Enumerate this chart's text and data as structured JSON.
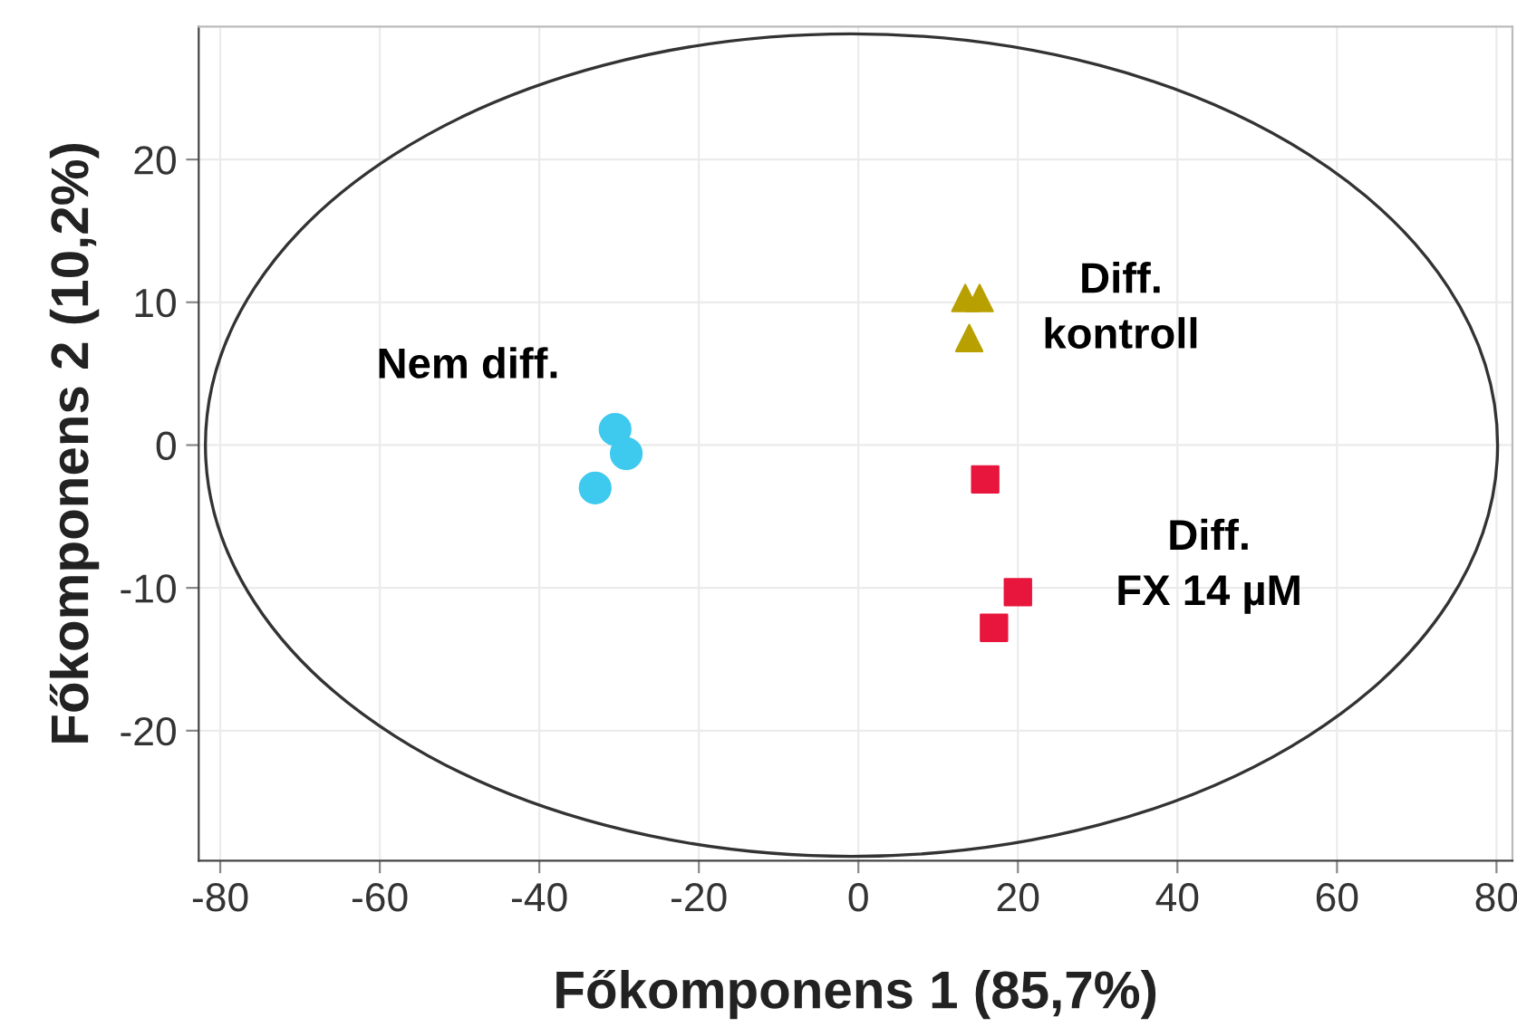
{
  "chart_data": {
    "type": "scatter",
    "xlabel": "Főkomponens 1 (85,7%)",
    "ylabel": "Főkomponens 2 (10,2%)",
    "xlim": [
      -82.7,
      82
    ],
    "ylim": [
      -29.1,
      29.3
    ],
    "xticks": [
      -80,
      -60,
      -40,
      -20,
      0,
      20,
      40,
      60,
      80
    ],
    "yticks": [
      -20,
      -10,
      0,
      10,
      20
    ],
    "grid": true,
    "legend": false,
    "series": [
      {
        "color": "#3ec9ee",
        "marker": "circle",
        "x": [
          -30.5,
          -29.1,
          -33
        ],
        "values": [
          1.1,
          -0.6,
          -3.0
        ]
      },
      {
        "color": "#b8a000",
        "marker": "triangle",
        "x": [
          13.4,
          15.2,
          13.9
        ],
        "values": [
          10.3,
          10.3,
          7.5
        ]
      },
      {
        "color": "#e8163c",
        "marker": "square",
        "x": [
          15.9,
          20,
          17
        ],
        "values": [
          -2.4,
          -10.3,
          -12.8
        ]
      }
    ],
    "annotations": [
      "Nem diff.",
      "Diff.\nkontroll",
      "Diff.\nFX 14 µM"
    ]
  }
}
